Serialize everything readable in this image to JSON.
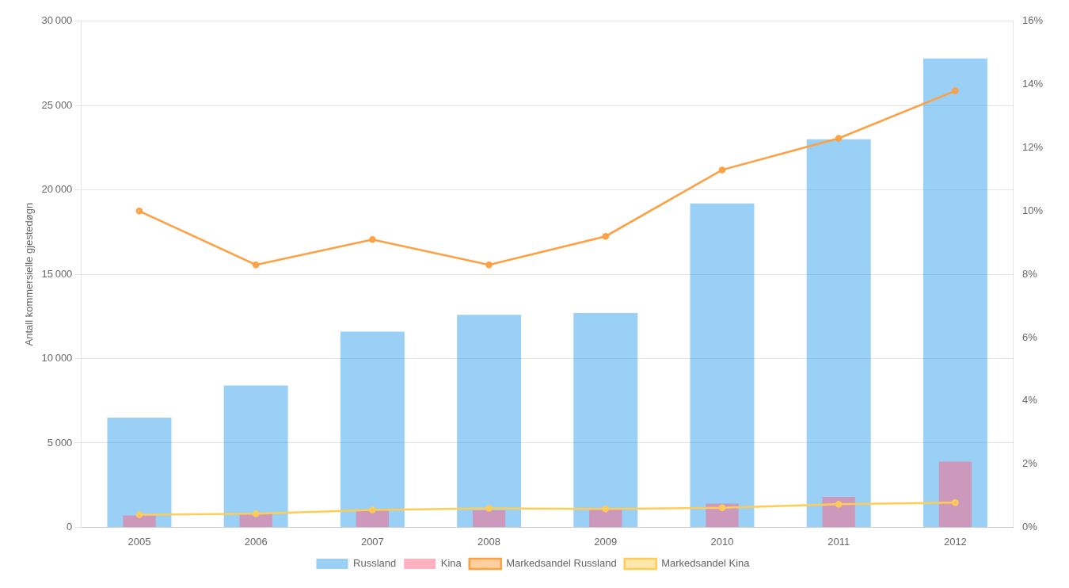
{
  "chart_data": {
    "type": "bar",
    "categories": [
      "2005",
      "2006",
      "2007",
      "2008",
      "2009",
      "2010",
      "2011",
      "2012"
    ],
    "series": [
      {
        "name": "Russland",
        "type": "bar",
        "values": [
          6500,
          8400,
          11600,
          12600,
          12700,
          19200,
          23000,
          27800
        ]
      },
      {
        "name": "Kina",
        "type": "bar",
        "values": [
          700,
          800,
          1000,
          1000,
          1100,
          1400,
          1800,
          3900
        ]
      },
      {
        "name": "Markedsandel Russland",
        "type": "line",
        "axis": "y2",
        "values": [
          0.1,
          0.083,
          0.091,
          0.083,
          0.092,
          0.113,
          0.123,
          0.138
        ]
      },
      {
        "name": "Markedsandel Kina",
        "type": "line",
        "axis": "y2",
        "values": [
          0.004,
          0.0043,
          0.0055,
          0.006,
          0.0058,
          0.0062,
          0.0073,
          0.0078
        ]
      }
    ],
    "y_label": "Antall kommersielle gjestedøgn",
    "ylim": [
      0,
      30000
    ],
    "yticks": [
      0,
      {
        "value": 5000,
        "label": "5 000"
      },
      {
        "value": 10000,
        "label": "10 000"
      },
      {
        "value": 15000,
        "label": "15 000"
      },
      {
        "value": 20000,
        "label": "20 000"
      },
      {
        "value": 25000,
        "label": "25 000"
      },
      {
        "value": 30000,
        "label": "30 000"
      }
    ],
    "y2lim": [
      0,
      0.16
    ],
    "y2ticks": [
      {
        "value": 0.0,
        "label": "0%"
      },
      {
        "value": 0.02,
        "label": "2%"
      },
      {
        "value": 0.04,
        "label": "4%"
      },
      {
        "value": 0.06,
        "label": "6%"
      },
      {
        "value": 0.08,
        "label": "8%"
      },
      {
        "value": 0.1,
        "label": "10%"
      },
      {
        "value": 0.12,
        "label": "12%"
      },
      {
        "value": 0.14,
        "label": "14%"
      },
      {
        "value": 0.16,
        "label": "16%"
      }
    ],
    "grid": true,
    "legend": "bottom"
  }
}
